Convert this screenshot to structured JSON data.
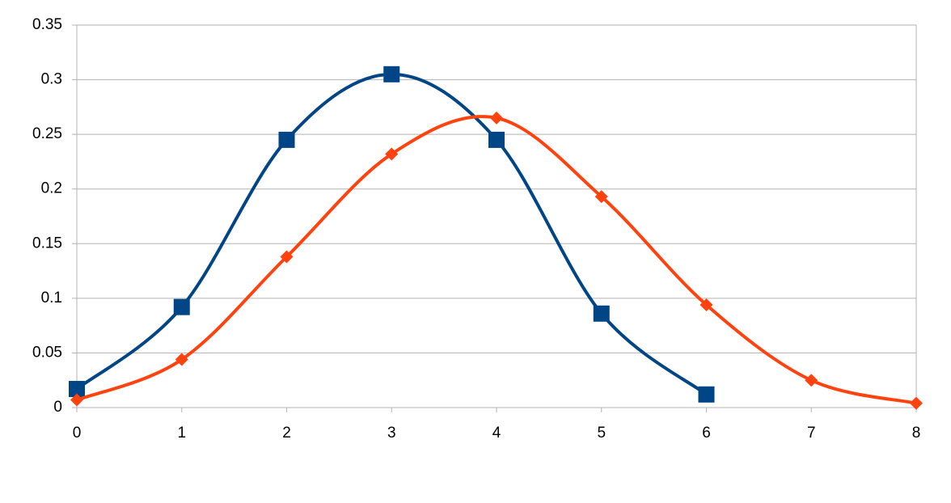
{
  "chart_data": {
    "type": "line",
    "x": [
      0,
      1,
      2,
      3,
      4,
      5,
      6,
      7,
      8
    ],
    "series": [
      {
        "color": "#004586",
        "marker": "square",
        "values": [
          0.017,
          0.092,
          0.245,
          0.305,
          0.245,
          0.086,
          0.012,
          null,
          null
        ]
      },
      {
        "color": "#ff420e",
        "marker": "diamond",
        "values": [
          0.007,
          0.044,
          0.138,
          0.232,
          0.265,
          0.193,
          0.094,
          0.025,
          0.004
        ]
      }
    ],
    "xlim": [
      0,
      8
    ],
    "xticks": [
      0,
      1,
      2,
      3,
      4,
      5,
      6,
      7,
      8
    ],
    "ylim": [
      0,
      0.35
    ],
    "yticks": [
      0,
      0.05,
      0.1,
      0.15,
      0.2,
      0.25,
      0.3,
      0.35
    ],
    "grid": true,
    "smooth": true
  }
}
